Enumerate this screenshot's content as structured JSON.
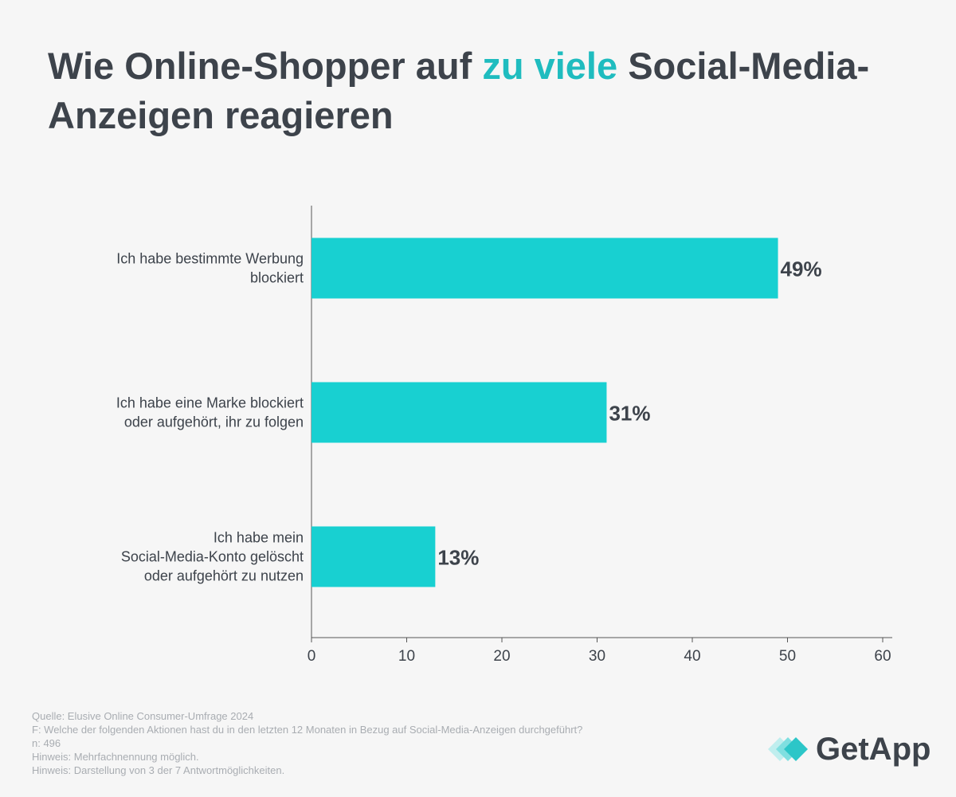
{
  "title": {
    "part1": "Wie Online-Shopper auf ",
    "highlight": "zu viele",
    "part2": " Social-Media-Anzeigen reagieren"
  },
  "colors": {
    "bar": "#18d0d1",
    "highlight": "#1fbcbf",
    "text": "#3d434b",
    "axis": "#555555",
    "footnote": "#a9adb2",
    "background": "#f6f6f6"
  },
  "chart_data": {
    "type": "bar",
    "orientation": "horizontal",
    "categories": [
      [
        "Ich habe bestimmte Werbung",
        "blockiert"
      ],
      [
        "Ich habe eine Marke blockiert",
        "oder aufgehört, ihr zu folgen"
      ],
      [
        "Ich habe mein",
        "Social-Media-Konto gelöscht",
        "oder aufgehört zu nutzen"
      ]
    ],
    "values": [
      49,
      31,
      13
    ],
    "value_labels": [
      "49%",
      "31%",
      "13%"
    ],
    "xlim": [
      0,
      60
    ],
    "xticks": [
      0,
      10,
      20,
      30,
      40,
      50,
      60
    ],
    "grid": false
  },
  "footer": {
    "lines": [
      "Quelle: Elusive Online Consumer-Umfrage 2024",
      "F: Welche der folgenden Aktionen hast du in den letzten 12 Monaten in Bezug auf Social-Media-Anzeigen durchgeführt?",
      "n: 496",
      "Hinweis: Mehrfachnennung möglich.",
      "Hinweis: Darstellung von 3 der 7 Antwortmöglichkeiten."
    ]
  },
  "logo": {
    "text": "GetApp",
    "icon": "getapp-diamond-icon"
  }
}
